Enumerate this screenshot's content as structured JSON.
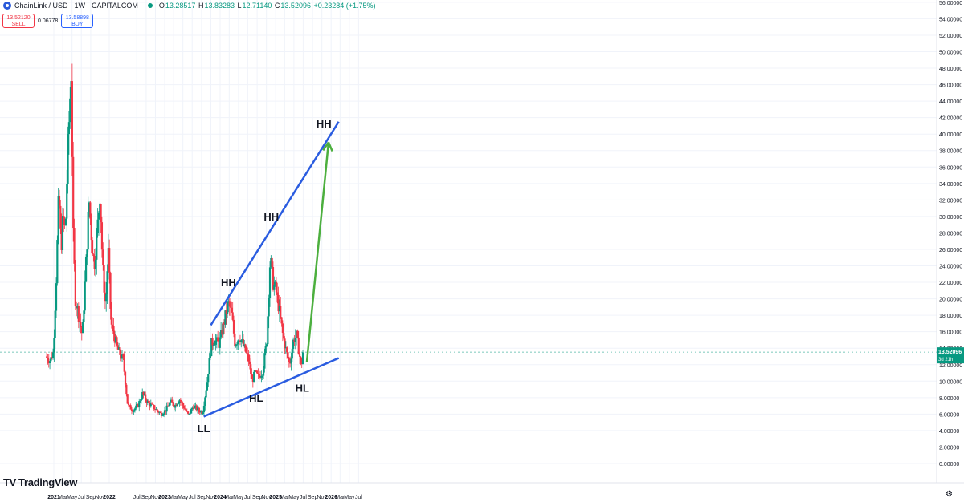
{
  "header": {
    "symbol": "ChainLink / USD · 1W · CAPITALCOM",
    "open_label": "O",
    "open": "13.28517",
    "high_label": "H",
    "high": "13.83283",
    "low_label": "L",
    "low": "12.71140",
    "close_label": "C",
    "close": "13.52096",
    "change": "+0.23284 (+1.75%)"
  },
  "trade": {
    "sell_price": "13.52120",
    "sell_label": "SELL",
    "spread": "0.06778",
    "buy_price": "13.58898",
    "buy_label": "BUY"
  },
  "price_badge": {
    "value": "13.52096",
    "countdown": "3d 21h"
  },
  "branding": {
    "name": "TradingView"
  },
  "colors": {
    "up": "#089981",
    "down": "#f23645",
    "trendline": "#2a5ce0",
    "arrow": "#4caf3e",
    "grid": "#f0f3fa"
  },
  "chart_data": {
    "type": "candlestick",
    "timeframe": "1W",
    "y_axis": {
      "min": 0,
      "max": 56,
      "step": 2,
      "ticks": [
        "0.00000",
        "2.00000",
        "4.00000",
        "6.00000",
        "8.00000",
        "10.00000",
        "12.00000",
        "14.00000",
        "16.00000",
        "18.00000",
        "20.00000",
        "22.00000",
        "24.00000",
        "26.00000",
        "28.00000",
        "30.00000",
        "32.00000",
        "34.00000",
        "36.00000",
        "38.00000",
        "40.00000",
        "42.00000",
        "44.00000",
        "46.00000",
        "48.00000",
        "50.00000",
        "52.00000",
        "54.00000",
        "56.00000"
      ]
    },
    "x_axis": {
      "ticks": [
        {
          "date": "2021-01-01",
          "label": "2021"
        },
        {
          "date": "2021-03-01",
          "label": "Mar"
        },
        {
          "date": "2021-05-01",
          "label": "May"
        },
        {
          "date": "2021-07-01",
          "label": "Jul"
        },
        {
          "date": "2021-09-01",
          "label": "Sep"
        },
        {
          "date": "2021-11-01",
          "label": "Nov"
        },
        {
          "date": "2022-01-01",
          "label": "2022"
        },
        {
          "date": "2022-07-01",
          "label": "Jul"
        },
        {
          "date": "2022-09-01",
          "label": "Sep"
        },
        {
          "date": "2022-11-01",
          "label": "Nov"
        },
        {
          "date": "2023-01-01",
          "label": "2023"
        },
        {
          "date": "2023-03-01",
          "label": "Mar"
        },
        {
          "date": "2023-05-01",
          "label": "May"
        },
        {
          "date": "2023-07-01",
          "label": "Jul"
        },
        {
          "date": "2023-09-01",
          "label": "Sep"
        },
        {
          "date": "2023-11-01",
          "label": "Nov"
        },
        {
          "date": "2024-01-01",
          "label": "2024"
        },
        {
          "date": "2024-03-01",
          "label": "Mar"
        },
        {
          "date": "2024-05-01",
          "label": "May"
        },
        {
          "date": "2024-07-01",
          "label": "Jul"
        },
        {
          "date": "2024-09-01",
          "label": "Sep"
        },
        {
          "date": "2024-11-01",
          "label": "Nov"
        },
        {
          "date": "2025-01-01",
          "label": "2025"
        },
        {
          "date": "2025-03-01",
          "label": "Mar"
        },
        {
          "date": "2025-05-01",
          "label": "May"
        },
        {
          "date": "2025-07-01",
          "label": "Jul"
        },
        {
          "date": "2025-09-01",
          "label": "Sep"
        },
        {
          "date": "2025-11-01",
          "label": "Nov"
        },
        {
          "date": "2026-01-01",
          "label": "2026"
        },
        {
          "date": "2026-03-01",
          "label": "Mar"
        },
        {
          "date": "2026-05-01",
          "label": "May"
        },
        {
          "date": "2026-07-01",
          "label": "Jul"
        }
      ],
      "domain": [
        "2020-11-01",
        "2026-09-01"
      ]
    },
    "price_path": [
      [
        "2020-11-15",
        13.0
      ],
      [
        "2020-12-15",
        12.5
      ],
      [
        "2021-01-05",
        13.5
      ],
      [
        "2021-01-25",
        23.0
      ],
      [
        "2021-02-10",
        33.0
      ],
      [
        "2021-02-25",
        26.0
      ],
      [
        "2021-03-10",
        30.0
      ],
      [
        "2021-03-25",
        28.0
      ],
      [
        "2021-04-10",
        38.0
      ],
      [
        "2021-05-03",
        48.0
      ],
      [
        "2021-05-15",
        28.0
      ],
      [
        "2021-05-30",
        20.0
      ],
      [
        "2021-06-15",
        18.5
      ],
      [
        "2021-06-30",
        17.0
      ],
      [
        "2021-07-15",
        15.5
      ],
      [
        "2021-07-30",
        21.0
      ],
      [
        "2021-08-15",
        27.0
      ],
      [
        "2021-08-28",
        32.0
      ],
      [
        "2021-09-15",
        27.0
      ],
      [
        "2021-10-01",
        24.0
      ],
      [
        "2021-10-20",
        28.0
      ],
      [
        "2021-11-08",
        33.0
      ],
      [
        "2021-11-25",
        24.0
      ],
      [
        "2021-12-15",
        19.0
      ],
      [
        "2022-01-01",
        26.0
      ],
      [
        "2022-01-20",
        17.0
      ],
      [
        "2022-02-10",
        15.5
      ],
      [
        "2022-03-01",
        14.0
      ],
      [
        "2022-04-10",
        12.5
      ],
      [
        "2022-05-10",
        7.0
      ],
      [
        "2022-06-15",
        6.5
      ],
      [
        "2022-07-15",
        7.0
      ],
      [
        "2022-08-15",
        8.5
      ],
      [
        "2022-09-15",
        7.5
      ],
      [
        "2022-10-15",
        7.0
      ],
      [
        "2022-11-15",
        6.5
      ],
      [
        "2022-12-15",
        6.0
      ],
      [
        "2023-01-15",
        6.5
      ],
      [
        "2023-02-15",
        7.5
      ],
      [
        "2023-03-15",
        7.0
      ],
      [
        "2023-04-15",
        7.8
      ],
      [
        "2023-05-15",
        6.8
      ],
      [
        "2023-06-15",
        5.8
      ],
      [
        "2023-07-15",
        7.0
      ],
      [
        "2023-08-15",
        6.5
      ],
      [
        "2023-09-15",
        6.2
      ],
      [
        "2023-10-15",
        10.0
      ],
      [
        "2023-11-10",
        14.5
      ],
      [
        "2023-12-01",
        15.0
      ],
      [
        "2024-01-01",
        14.5
      ],
      [
        "2024-02-01",
        17.0
      ],
      [
        "2024-03-01",
        19.5
      ],
      [
        "2024-03-25",
        18.0
      ],
      [
        "2024-04-15",
        14.5
      ],
      [
        "2024-05-15",
        15.5
      ],
      [
        "2024-06-15",
        14.0
      ],
      [
        "2024-07-15",
        12.5
      ],
      [
        "2024-08-05",
        10.0
      ],
      [
        "2024-08-25",
        11.0
      ],
      [
        "2024-09-15",
        10.5
      ],
      [
        "2024-10-15",
        11.2
      ],
      [
        "2024-11-10",
        15.0
      ],
      [
        "2024-12-03",
        25.0
      ],
      [
        "2024-12-20",
        22.0
      ],
      [
        "2025-01-10",
        21.0
      ],
      [
        "2025-02-01",
        18.5
      ],
      [
        "2025-02-25",
        15.5
      ],
      [
        "2025-03-20",
        13.5
      ],
      [
        "2025-04-10",
        12.0
      ],
      [
        "2025-05-05",
        15.0
      ],
      [
        "2025-05-25",
        15.5
      ],
      [
        "2025-06-15",
        13.0
      ],
      [
        "2025-06-25",
        11.5
      ],
      [
        "2025-07-05",
        13.5
      ]
    ],
    "annotations": [
      {
        "text": "HH",
        "date": "2024-02-25",
        "price": 21.5
      },
      {
        "text": "HH",
        "date": "2024-12-03",
        "price": 29.5
      },
      {
        "text": "HH",
        "date": "2025-11-15",
        "price": 40.8
      },
      {
        "text": "HL",
        "date": "2024-08-25",
        "price": 7.5
      },
      {
        "text": "HL",
        "date": "2025-06-25",
        "price": 8.7
      },
      {
        "text": "LL",
        "date": "2023-09-15",
        "price": 3.8
      }
    ],
    "trendlines": [
      {
        "name": "upper",
        "from": [
          "2023-11-01",
          16.8
        ],
        "to": [
          "2026-02-20",
          41.5
        ]
      },
      {
        "name": "lower",
        "from": [
          "2023-09-15",
          5.7
        ],
        "to": [
          "2026-02-20",
          12.8
        ]
      }
    ],
    "arrow": {
      "from": [
        "2025-07-25",
        12.3
      ],
      "to": [
        "2025-12-15",
        39.0
      ]
    },
    "current_price": 13.52096
  }
}
